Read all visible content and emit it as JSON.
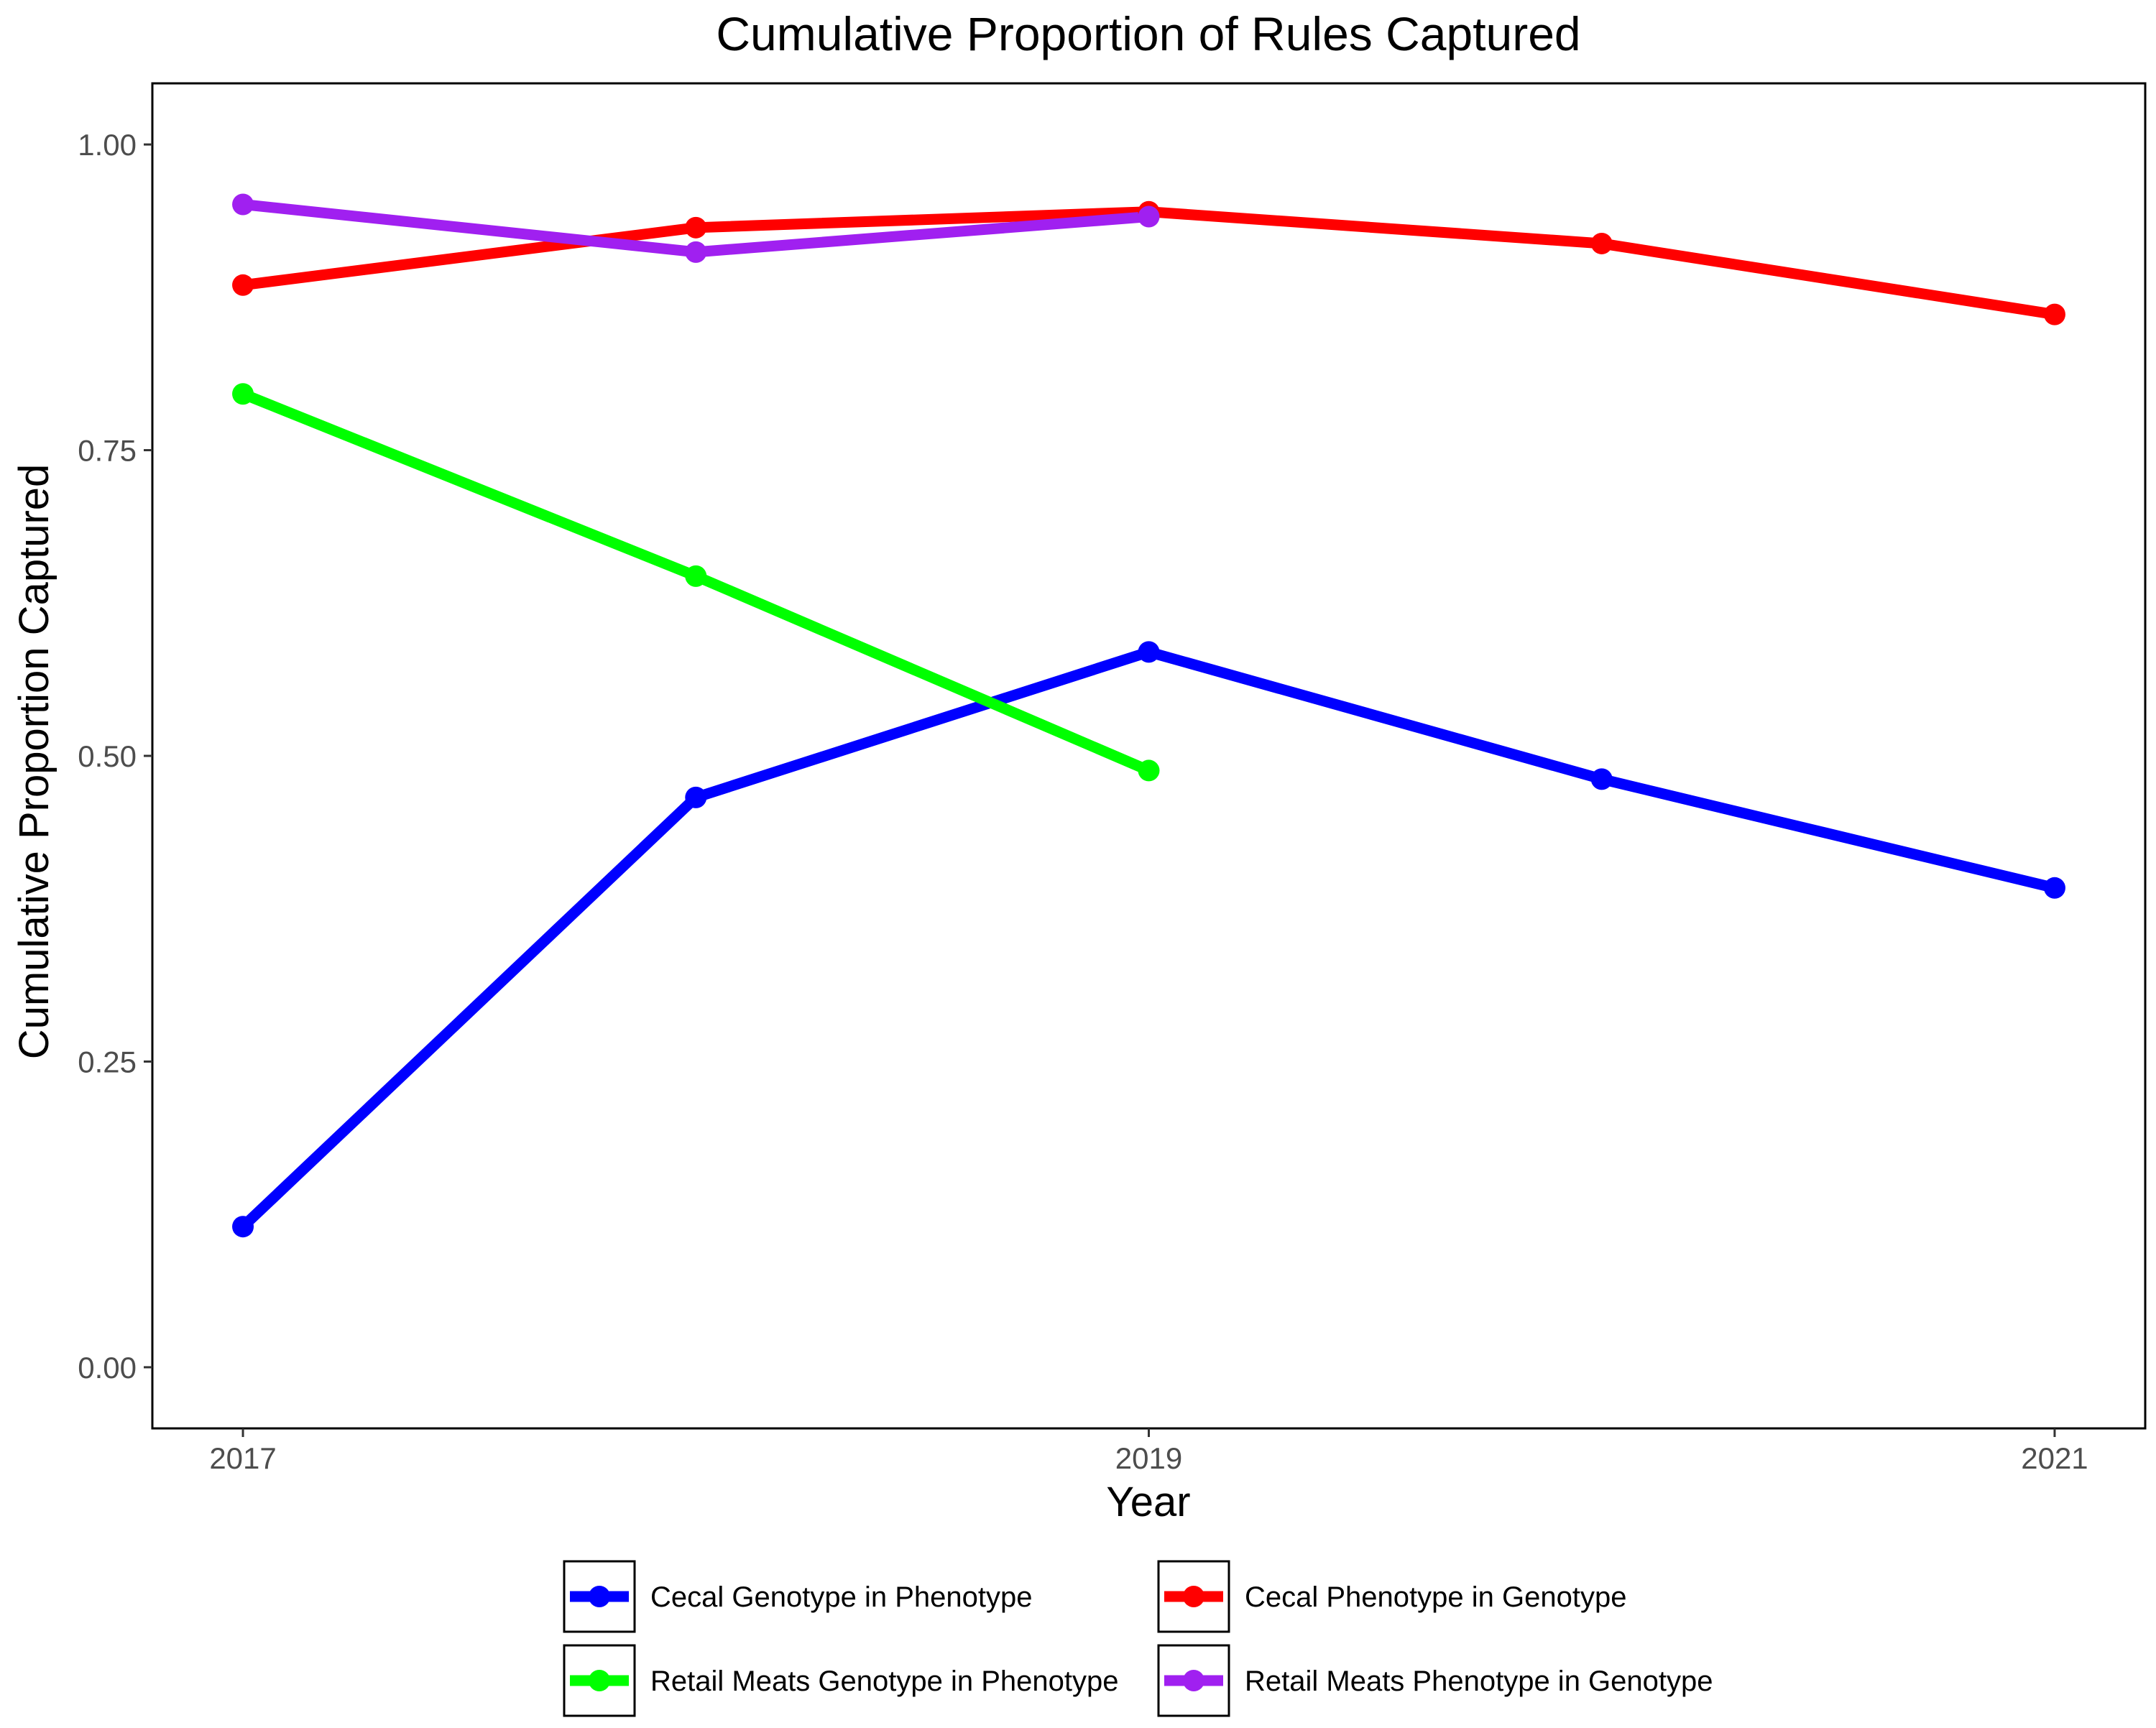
{
  "chart_data": {
    "type": "line",
    "title": "Cumulative Proportion of Rules Captured",
    "xlabel": "Year",
    "ylabel": "Cumulative Proportion Captured",
    "x": [
      2017,
      2018,
      2019,
      2020,
      2021
    ],
    "xlim": [
      2016.8,
      2021.2
    ],
    "ylim": [
      -0.05,
      1.05
    ],
    "x_ticks": [
      2017,
      2019,
      2021
    ],
    "x_tick_labels": [
      "2017",
      "2019",
      "2021"
    ],
    "y_ticks": [
      0,
      0.25,
      0.5,
      0.75,
      1.0
    ],
    "y_tick_labels": [
      "0.00",
      "0.25",
      "0.50",
      "0.75",
      "1.00"
    ],
    "grid": false,
    "legend_position": "bottom",
    "series": [
      {
        "name": "Cecal Genotype in Phenotype",
        "color": "#0000FF",
        "x": [
          2017,
          2018,
          2019,
          2020,
          2021
        ],
        "values": [
          0.115,
          0.466,
          0.585,
          0.481,
          0.392
        ]
      },
      {
        "name": "Cecal Phenotype in Genotype",
        "color": "#FF0000",
        "x": [
          2017,
          2018,
          2019,
          2020,
          2021
        ],
        "values": [
          0.885,
          0.932,
          0.945,
          0.919,
          0.861
        ]
      },
      {
        "name": "Retail Meats Genotype in Phenotype",
        "color": "#00FF00",
        "x": [
          2017,
          2018,
          2019
        ],
        "values": [
          0.796,
          0.647,
          0.488
        ]
      },
      {
        "name": "Retail Meats Phenotype in Genotype",
        "color": "#A020F0",
        "x": [
          2017,
          2018,
          2019
        ],
        "values": [
          0.951,
          0.912,
          0.941
        ]
      }
    ]
  }
}
